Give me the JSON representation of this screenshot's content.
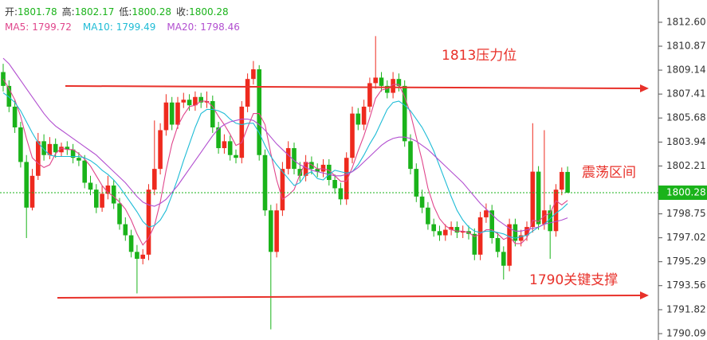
{
  "chart_data": {
    "type": "candlestick",
    "ohlc_labels": [
      "开:",
      "高:",
      "低:",
      "收:"
    ],
    "annotations": [
      "1813压力位",
      "震荡区间",
      "1790关键支撑"
    ],
    "up_color": "#ee2a1e",
    "down_color": "#1ab31a",
    "ylim": [
      1789.63,
      1814.21
    ],
    "yticks": [
      {
        "value": 1812.6,
        "label": "1812.60"
      },
      1810.87,
      1809.14,
      1807.41,
      1805.68,
      1803.94,
      1802.21,
      1798.75,
      1797.02,
      1795.29,
      1793.56,
      1791.82,
      1790.09
    ],
    "open": [
      1809.0,
      1808.0,
      1806.5,
      1805.0,
      1802.5,
      1799.2,
      1801.5,
      1804.0,
      1803.0,
      1803.8,
      1803.2,
      1803.6,
      1803.4,
      1802.8,
      1802.6,
      1801.0,
      1800.5,
      1799.2,
      1800.2,
      1800.8,
      1799.5,
      1798.0,
      1797.2,
      1796.0,
      1795.5,
      1795.8,
      1800.5,
      1802.0,
      1804.8,
      1806.8,
      1805.2,
      1806.8,
      1807.0,
      1806.6,
      1807.2,
      1806.8,
      1806.9,
      1805.0,
      1803.5,
      1804.0,
      1803.0,
      1802.8,
      1806.5,
      1808.5,
      1809.2,
      1803.0,
      1799.0,
      1796.0,
      1799.0,
      1802.0,
      1803.5,
      1802.0,
      1801.5,
      1802.5,
      1802.0,
      1801.8,
      1802.3,
      1801.2,
      1800.6,
      1799.8,
      1802.8,
      1806.0,
      1805.2,
      1806.5,
      1808.2,
      1808.6,
      1808.0,
      1807.5,
      1808.5,
      1808.0,
      1804.0,
      1802.0,
      1800.0,
      1799.2,
      1798.0,
      1797.5,
      1797.2,
      1797.6,
      1797.8,
      1797.4,
      1797.5,
      1797.3,
      1795.8,
      1798.5,
      1799.0,
      1797.0,
      1796.0,
      1795.0,
      1798.0,
      1796.8,
      1797.2,
      1797.8,
      1801.8,
      1798.0,
      1799.0,
      1797.5,
      1800.5,
      1801.78
    ],
    "high": [
      1809.6,
      1808.4,
      1807.0,
      1805.4,
      1803.0,
      1802.0,
      1804.6,
      1804.5,
      1804.3,
      1804.2,
      1803.9,
      1804.0,
      1803.8,
      1803.2,
      1803.0,
      1801.5,
      1800.9,
      1800.8,
      1801.5,
      1801.2,
      1799.9,
      1798.5,
      1797.6,
      1796.5,
      1796.2,
      1800.9,
      1805.5,
      1805.3,
      1807.4,
      1807.2,
      1807.2,
      1807.5,
      1807.4,
      1807.6,
      1807.5,
      1807.6,
      1807.3,
      1805.4,
      1804.5,
      1804.4,
      1803.4,
      1806.9,
      1808.9,
      1809.8,
      1809.5,
      1803.4,
      1799.4,
      1799.5,
      1802.5,
      1804.0,
      1803.9,
      1802.5,
      1803.0,
      1802.9,
      1802.4,
      1802.7,
      1802.7,
      1801.6,
      1801.0,
      1803.2,
      1806.5,
      1806.4,
      1807.0,
      1808.6,
      1811.6,
      1809.0,
      1808.4,
      1809.0,
      1808.9,
      1808.4,
      1804.5,
      1802.4,
      1800.5,
      1799.6,
      1798.4,
      1797.9,
      1798.0,
      1798.2,
      1798.2,
      1797.9,
      1797.9,
      1797.7,
      1798.9,
      1799.5,
      1799.4,
      1797.4,
      1796.4,
      1798.4,
      1798.4,
      1797.6,
      1798.2,
      1805.3,
      1802.2,
      1804.8,
      1799.4,
      1800.9,
      1802.1,
      1802.17
    ],
    "low": [
      1807.6,
      1806.1,
      1804.6,
      1802.1,
      1797.0,
      1799.0,
      1801.2,
      1802.6,
      1802.7,
      1802.8,
      1802.9,
      1803.0,
      1802.4,
      1802.2,
      1800.6,
      1800.1,
      1798.8,
      1798.9,
      1799.8,
      1799.1,
      1797.6,
      1796.8,
      1795.6,
      1793.0,
      1795.1,
      1795.4,
      1800.1,
      1801.6,
      1804.4,
      1804.8,
      1804.9,
      1806.4,
      1806.2,
      1806.2,
      1806.4,
      1806.4,
      1804.6,
      1803.1,
      1803.1,
      1802.6,
      1802.4,
      1802.4,
      1806.1,
      1808.1,
      1802.6,
      1798.6,
      1790.4,
      1795.6,
      1798.6,
      1801.6,
      1801.6,
      1801.1,
      1801.1,
      1801.6,
      1801.4,
      1801.4,
      1800.8,
      1800.2,
      1799.4,
      1799.4,
      1802.4,
      1804.8,
      1804.8,
      1806.1,
      1807.8,
      1807.6,
      1807.1,
      1807.1,
      1807.6,
      1803.6,
      1801.6,
      1799.6,
      1798.8,
      1797.6,
      1797.1,
      1796.8,
      1796.8,
      1797.2,
      1797.0,
      1797.0,
      1796.9,
      1795.4,
      1795.4,
      1798.1,
      1796.6,
      1795.6,
      1794.0,
      1794.6,
      1796.4,
      1796.4,
      1796.8,
      1797.4,
      1797.6,
      1797.6,
      1795.5,
      1797.1,
      1800.1,
      1800.28
    ],
    "close": [
      1808.0,
      1806.5,
      1805.0,
      1802.5,
      1799.2,
      1801.5,
      1804.0,
      1803.0,
      1803.8,
      1803.2,
      1803.6,
      1803.4,
      1802.8,
      1802.6,
      1801.0,
      1800.5,
      1799.2,
      1800.2,
      1800.8,
      1799.5,
      1798.0,
      1797.2,
      1796.0,
      1795.5,
      1795.8,
      1800.5,
      1802.0,
      1804.8,
      1806.8,
      1805.2,
      1806.8,
      1807.0,
      1806.6,
      1807.2,
      1806.8,
      1806.9,
      1805.0,
      1803.5,
      1804.0,
      1803.0,
      1802.8,
      1806.5,
      1808.5,
      1809.2,
      1803.0,
      1799.0,
      1796.0,
      1799.0,
      1802.0,
      1803.5,
      1802.0,
      1801.5,
      1802.5,
      1802.0,
      1801.8,
      1802.3,
      1801.2,
      1800.6,
      1799.8,
      1802.8,
      1806.0,
      1805.2,
      1806.5,
      1808.2,
      1808.6,
      1808.0,
      1807.5,
      1808.5,
      1808.0,
      1804.0,
      1802.0,
      1800.0,
      1799.2,
      1798.0,
      1797.5,
      1797.2,
      1797.6,
      1797.8,
      1797.4,
      1797.5,
      1797.3,
      1795.8,
      1798.5,
      1799.0,
      1797.0,
      1796.0,
      1795.0,
      1798.0,
      1796.8,
      1797.2,
      1797.8,
      1801.8,
      1798.0,
      1799.0,
      1797.5,
      1800.5,
      1801.78,
      1800.28
    ],
    "ma": [
      {
        "name": "MA5:",
        "color": "#e0468c",
        "values": [
          1808.5,
          1807.8,
          1807.0,
          1805.8,
          1804.2,
          1802.8,
          1802.4,
          1802.1,
          1802.3,
          1803.1,
          1803.5,
          1803.4,
          1803.4,
          1803.1,
          1802.7,
          1802.2,
          1801.5,
          1800.8,
          1800.3,
          1800.0,
          1799.6,
          1799.1,
          1798.3,
          1797.3,
          1796.5,
          1797.0,
          1797.9,
          1799.6,
          1801.9,
          1803.8,
          1805.1,
          1805.9,
          1806.5,
          1806.6,
          1806.9,
          1806.9,
          1806.5,
          1805.8,
          1805.2,
          1804.5,
          1803.7,
          1803.9,
          1805.0,
          1806.0,
          1806.0,
          1805.2,
          1803.1,
          1801.2,
          1799.8,
          1800.1,
          1800.5,
          1801.6,
          1802.5,
          1802.3,
          1802.0,
          1802.0,
          1801.9,
          1801.5,
          1801.1,
          1801.1,
          1802.1,
          1803.3,
          1804.4,
          1805.7,
          1807.1,
          1807.7,
          1807.8,
          1808.1,
          1808.1,
          1807.2,
          1806.0,
          1804.3,
          1802.6,
          1800.6,
          1799.3,
          1798.4,
          1797.9,
          1797.6,
          1797.5,
          1797.5,
          1797.4,
          1797.1,
          1797.3,
          1797.6,
          1797.6,
          1797.3,
          1796.9,
          1797.1,
          1796.6,
          1796.6,
          1797.0,
          1798.3,
          1798.2,
          1798.6,
          1798.8,
          1799.7,
          1799.4,
          1799.72
        ]
      },
      {
        "name": "MA10:",
        "color": "#1fbcd6",
        "values": [
          1807.5,
          1807.2,
          1806.8,
          1806.2,
          1805.4,
          1804.6,
          1803.9,
          1803.4,
          1803.0,
          1802.9,
          1802.9,
          1802.9,
          1802.9,
          1802.9,
          1802.8,
          1802.6,
          1802.3,
          1801.9,
          1801.6,
          1801.2,
          1800.7,
          1800.1,
          1799.5,
          1798.9,
          1798.2,
          1797.8,
          1797.9,
          1798.3,
          1799.0,
          1800.1,
          1801.3,
          1802.6,
          1803.8,
          1805.0,
          1806.0,
          1806.3,
          1806.3,
          1806.2,
          1806.0,
          1805.6,
          1805.3,
          1805.2,
          1805.3,
          1805.3,
          1804.6,
          1803.7,
          1802.9,
          1802.3,
          1801.8,
          1801.3,
          1800.8,
          1801.0,
          1801.6,
          1801.8,
          1801.3,
          1801.2,
          1801.6,
          1801.9,
          1801.8,
          1801.7,
          1801.8,
          1802.3,
          1803.0,
          1803.8,
          1804.5,
          1805.4,
          1806.3,
          1806.8,
          1806.9,
          1806.6,
          1806.2,
          1805.6,
          1805.0,
          1804.2,
          1803.3,
          1802.2,
          1801.1,
          1800.0,
          1799.0,
          1798.3,
          1797.8,
          1797.5,
          1797.4,
          1797.5,
          1797.5,
          1797.4,
          1797.3,
          1797.1,
          1797.0,
          1797.1,
          1797.2,
          1797.5,
          1797.8,
          1798.0,
          1798.4,
          1798.8,
          1799.1,
          1799.49
        ]
      },
      {
        "name": "MA20:",
        "color": "#b24fd0",
        "values": [
          1810.0,
          1809.6,
          1809.0,
          1808.4,
          1807.8,
          1807.2,
          1806.6,
          1806.0,
          1805.5,
          1805.1,
          1804.8,
          1804.5,
          1804.2,
          1803.9,
          1803.6,
          1803.3,
          1803.0,
          1802.6,
          1802.2,
          1801.8,
          1801.4,
          1801.0,
          1800.5,
          1800.0,
          1799.6,
          1799.4,
          1799.3,
          1799.5,
          1799.8,
          1800.3,
          1800.8,
          1801.4,
          1802.0,
          1802.6,
          1803.2,
          1803.8,
          1804.4,
          1804.9,
          1805.2,
          1805.4,
          1805.5,
          1805.6,
          1805.6,
          1805.5,
          1805.2,
          1804.8,
          1804.3,
          1803.8,
          1803.4,
          1803.0,
          1802.6,
          1802.3,
          1802.1,
          1801.9,
          1801.8,
          1801.7,
          1801.6,
          1801.5,
          1801.5,
          1801.6,
          1801.8,
          1802.1,
          1802.5,
          1802.9,
          1803.3,
          1803.7,
          1804.0,
          1804.2,
          1804.3,
          1804.3,
          1804.2,
          1804.0,
          1803.7,
          1803.4,
          1803.0,
          1802.6,
          1802.2,
          1801.8,
          1801.4,
          1801.0,
          1800.5,
          1800.0,
          1799.5,
          1799.1,
          1798.7,
          1798.3,
          1798.0,
          1797.7,
          1797.5,
          1797.5,
          1797.6,
          1797.7,
          1797.8,
          1798.0,
          1798.1,
          1798.2,
          1798.3,
          1798.46
        ]
      }
    ]
  }
}
